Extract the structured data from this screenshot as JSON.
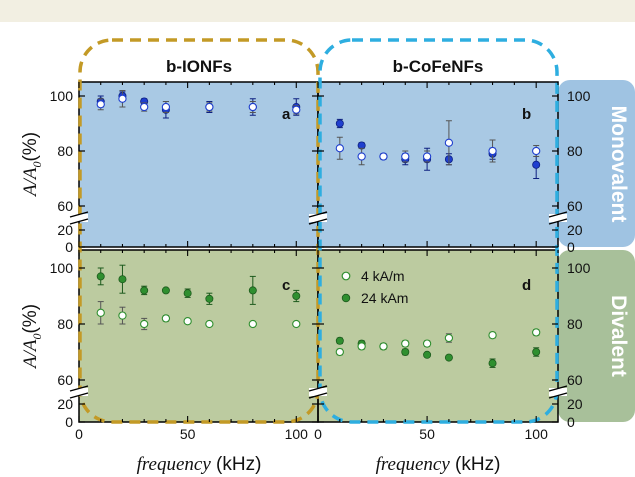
{
  "column_titles": [
    "b-IONFs",
    "b-CoFeNFs"
  ],
  "row_labels": [
    "Monovalent",
    "Divalent"
  ],
  "y_axis_label": "A/A₀(%)",
  "y_axis_label_var": "A/A",
  "y_axis_label_sub": "0",
  "y_axis_label_unit": "(%)",
  "x_axis_label_var": "frequency",
  "x_axis_label_unit": " (kHz)",
  "legend": [
    "4 kA/m",
    "24 kAm"
  ],
  "colors": {
    "mono_bg": "#a9c9e4",
    "di_bg": "#bccba0",
    "mono_tab": "#9fc3e2",
    "di_tab": "#a8c09a",
    "mono_marker": "#1f3fcf",
    "di_marker": "#2f8f2f",
    "ionf_frame": "#c39a26",
    "cofe_frame": "#2eaee0"
  },
  "chart_data": [
    {
      "type": "scatter",
      "panel": "a",
      "material": "b-IONFs",
      "group": "Monovalent",
      "x": [
        10,
        20,
        30,
        40,
        60,
        80,
        100
      ],
      "xlim": [
        0,
        110
      ],
      "ylim": [
        0,
        105
      ],
      "yticks": [
        0,
        20,
        60,
        80,
        100
      ],
      "axis_break": [
        20,
        60
      ],
      "series": [
        {
          "name": "4 kA/m",
          "y": [
            97,
            99,
            96,
            96,
            96,
            96,
            95
          ],
          "err": [
            2,
            3,
            1.5,
            2,
            1.5,
            2,
            1.5
          ]
        },
        {
          "name": "24 kAm",
          "y": [
            98,
            100,
            98,
            95,
            96,
            96,
            96
          ],
          "err": [
            2,
            1.5,
            1,
            3,
            2,
            3,
            3
          ]
        }
      ]
    },
    {
      "type": "scatter",
      "panel": "b",
      "material": "b-CoFeNFs",
      "group": "Monovalent",
      "x": [
        10,
        20,
        30,
        40,
        50,
        60,
        80,
        100
      ],
      "xlim": [
        0,
        110
      ],
      "ylim": [
        0,
        105
      ],
      "yticks": [
        0,
        20,
        60,
        80,
        100
      ],
      "axis_break": [
        20,
        60
      ],
      "series": [
        {
          "name": "4 kA/m",
          "y": [
            81,
            78,
            78,
            78,
            78,
            83,
            80,
            80
          ],
          "err": [
            4,
            3,
            1,
            2,
            2,
            8,
            4,
            2
          ]
        },
        {
          "name": "24 kAm",
          "y": [
            90,
            82,
            78,
            77,
            77,
            77,
            79,
            75
          ],
          "err": [
            1.5,
            1,
            1,
            2,
            4,
            2,
            2,
            5
          ]
        }
      ]
    },
    {
      "type": "scatter",
      "panel": "c",
      "material": "b-IONFs",
      "group": "Divalent",
      "x": [
        10,
        20,
        30,
        40,
        50,
        60,
        80,
        100
      ],
      "xlim": [
        0,
        110
      ],
      "ylim": [
        0,
        105
      ],
      "yticks": [
        0,
        20,
        60,
        80,
        100
      ],
      "axis_break": [
        20,
        60
      ],
      "series": [
        {
          "name": "4 kA/m",
          "y": [
            84,
            83,
            80,
            82,
            81,
            80,
            80,
            80
          ],
          "err": [
            4,
            3,
            2,
            1,
            0.5,
            0.5,
            0.5,
            0.5
          ]
        },
        {
          "name": "24 kAm",
          "y": [
            97,
            96,
            92,
            92,
            91,
            89,
            92,
            90
          ],
          "err": [
            3,
            5,
            1.5,
            0.5,
            1.5,
            2,
            5,
            2
          ]
        }
      ]
    },
    {
      "type": "scatter",
      "panel": "d",
      "material": "b-CoFeNFs",
      "group": "Divalent",
      "x": [
        10,
        20,
        30,
        40,
        50,
        60,
        80,
        100
      ],
      "xlim": [
        0,
        110
      ],
      "ylim": [
        0,
        105
      ],
      "yticks": [
        0,
        20,
        60,
        80,
        100
      ],
      "axis_break": [
        20,
        60
      ],
      "series": [
        {
          "name": "4 kA/m",
          "y": [
            70,
            72,
            72,
            73,
            73,
            75,
            76,
            77
          ],
          "err": [
            1,
            1,
            1,
            1,
            1,
            1.5,
            1,
            1
          ]
        },
        {
          "name": "24 kAm",
          "y": [
            74,
            73,
            72,
            70,
            69,
            68,
            66,
            70
          ],
          "err": [
            1,
            1,
            1,
            1,
            0.5,
            0.5,
            1.5,
            1.5
          ]
        }
      ]
    }
  ],
  "panel_letters": [
    "a",
    "b",
    "c",
    "d"
  ],
  "x_tick_labels": [
    "0",
    "50",
    "100"
  ]
}
